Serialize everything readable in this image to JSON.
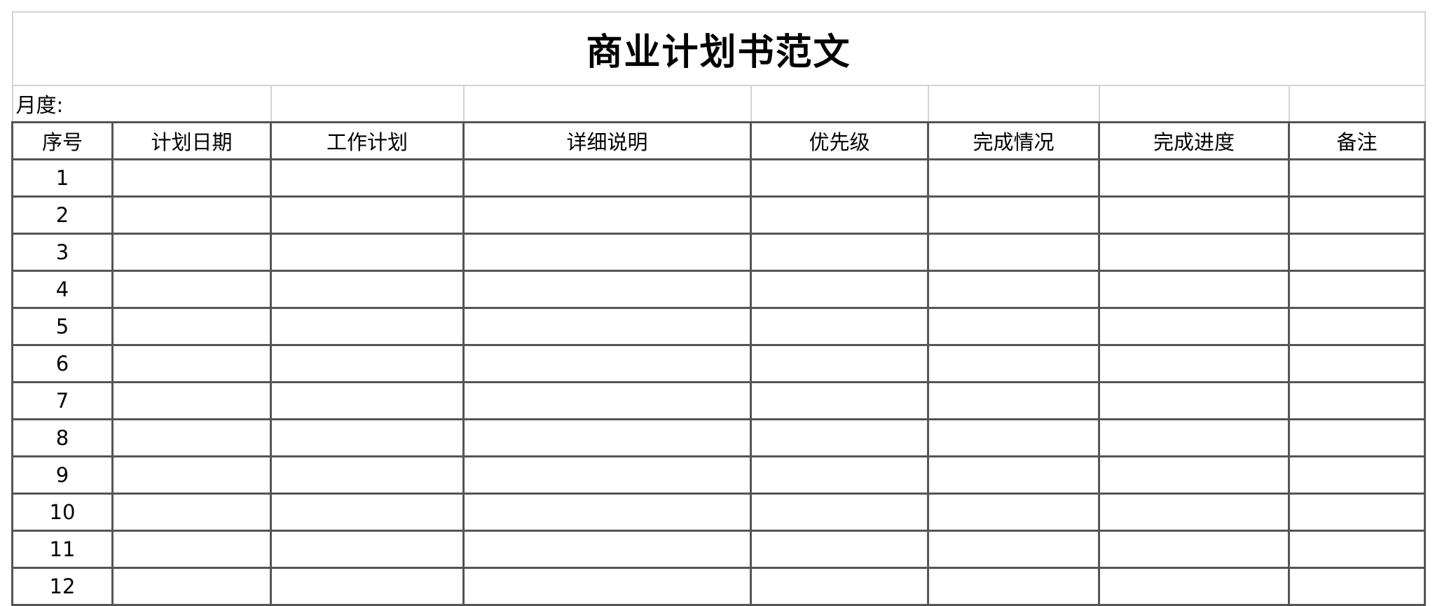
{
  "title": "商业计划书范文",
  "month_label": "月度:",
  "columns": [
    "序号",
    "计划日期",
    "工作计划",
    "详细说明",
    "优先级",
    "完成情况",
    "完成进度",
    "备注"
  ],
  "rows": [
    "1",
    "2",
    "3",
    "4",
    "5",
    "6",
    "7",
    "8",
    "9",
    "10",
    "11",
    "12"
  ]
}
